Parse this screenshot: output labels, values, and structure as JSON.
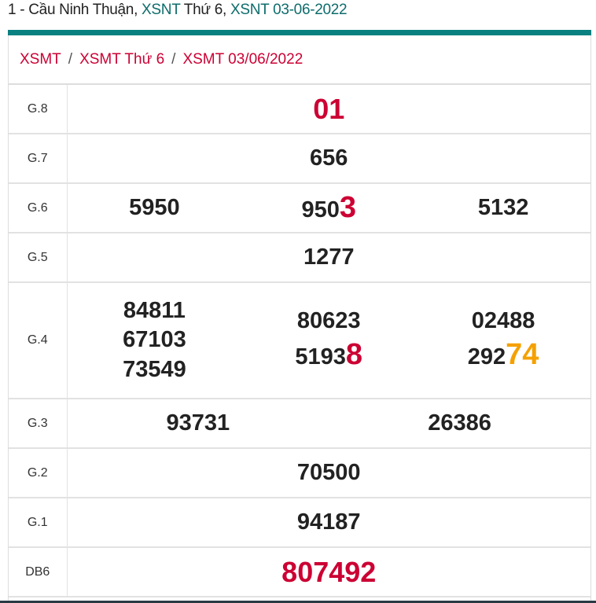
{
  "header": {
    "prefix": "1 - Cầu Ninh Thuận, ",
    "link1": "XSNT",
    "mid": " Thứ 6, ",
    "link2": "XSNT 03-06-2022"
  },
  "breadcrumb": [
    "XSMT",
    "XSMT Thứ 6",
    "XSMT 03/06/2022"
  ],
  "breadcrumb_sep": "/",
  "colors": {
    "accent": "#0a8080",
    "red": "#cc0033",
    "orange": "#f5a000"
  },
  "prizes": [
    {
      "label": "G.8",
      "big": true,
      "cols": [
        [
          {
            "main": "01",
            "hl": ""
          }
        ]
      ]
    },
    {
      "label": "G.7",
      "cols": [
        [
          {
            "main": "656",
            "hl": ""
          }
        ]
      ]
    },
    {
      "label": "G.6",
      "cols": [
        [
          {
            "main": "5950",
            "hl": ""
          }
        ],
        [
          {
            "main": "950",
            "hl": "3",
            "hl_color": "red"
          }
        ],
        [
          {
            "main": "5132",
            "hl": ""
          }
        ]
      ]
    },
    {
      "label": "G.5",
      "cols": [
        [
          {
            "main": "1277",
            "hl": ""
          }
        ]
      ]
    },
    {
      "label": "G.4",
      "cols": [
        [
          {
            "main": "84811",
            "hl": ""
          },
          {
            "main": "67103",
            "hl": ""
          },
          {
            "main": "73549",
            "hl": ""
          }
        ],
        [
          {
            "main": "80623",
            "hl": ""
          },
          {
            "main": "5193",
            "hl": "8",
            "hl_color": "red"
          }
        ],
        [
          {
            "main": "02488",
            "hl": ""
          },
          {
            "main": "292",
            "hl": "74",
            "hl_color": "orange"
          }
        ]
      ]
    },
    {
      "label": "G.3",
      "cols": [
        [
          {
            "main": "93731",
            "hl": ""
          }
        ],
        [
          {
            "main": "26386",
            "hl": ""
          }
        ]
      ]
    },
    {
      "label": "G.2",
      "cols": [
        [
          {
            "main": "70500",
            "hl": ""
          }
        ]
      ]
    },
    {
      "label": "G.1",
      "cols": [
        [
          {
            "main": "94187",
            "hl": ""
          }
        ]
      ]
    },
    {
      "label": "DB6",
      "big": true,
      "cols": [
        [
          {
            "main": "807492",
            "hl": ""
          }
        ]
      ]
    }
  ]
}
